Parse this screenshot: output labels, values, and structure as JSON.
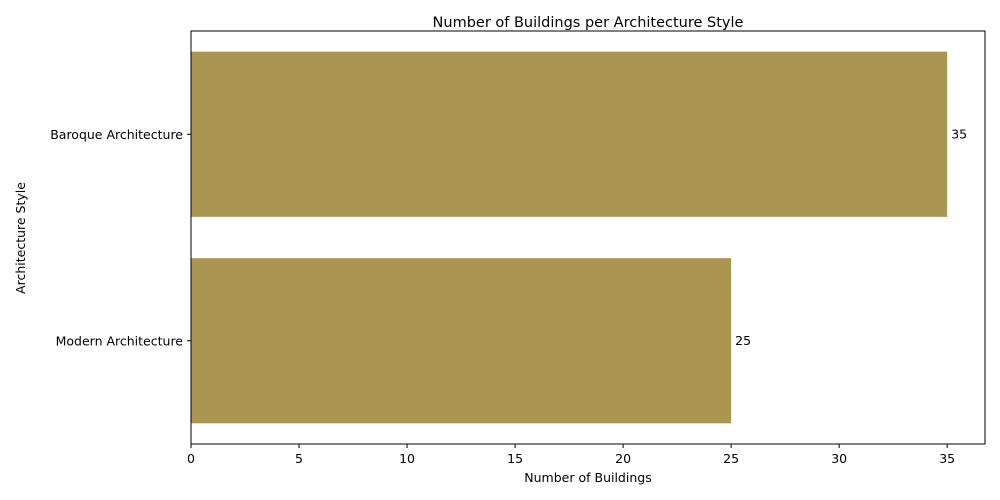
{
  "chart_data": {
    "type": "bar",
    "orientation": "horizontal",
    "title": "Number of Buildings per Architecture Style",
    "xlabel": "Number of Buildings",
    "ylabel": "Architecture Style",
    "categories": [
      "Baroque Architecture",
      "Modern Architecture"
    ],
    "values": [
      35,
      25
    ],
    "data_labels": [
      "35",
      "25"
    ],
    "xlim": [
      0,
      36.75
    ],
    "xticks": [
      0,
      5,
      10,
      15,
      20,
      25,
      30,
      35
    ],
    "grid": false,
    "legend": "none",
    "bar_color": "#aa9551"
  }
}
